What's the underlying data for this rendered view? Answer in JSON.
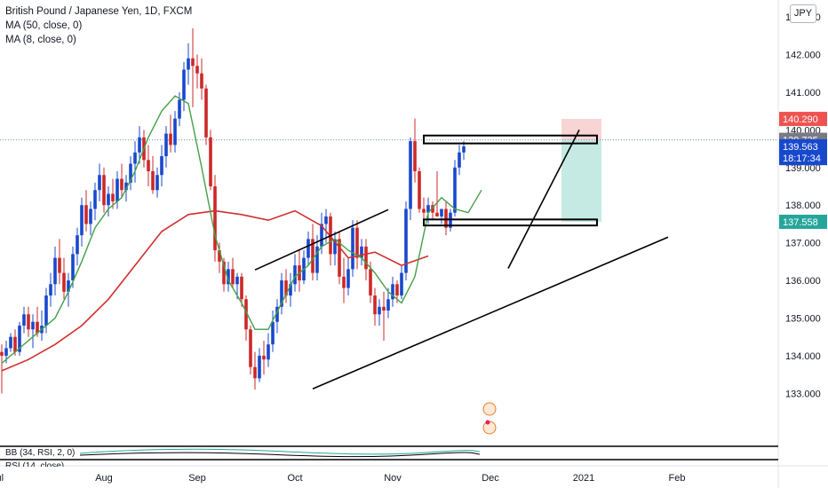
{
  "legend": {
    "title": "British Pound / Japanese Yen, 1D, FXCM",
    "ma50": "MA (50, close, 0)",
    "ma8": "MA (8, close, 0)"
  },
  "currency_button": "JPY",
  "indicators": {
    "bb": "BB (34, RSI, 2, 0)",
    "rsi": "RSI (14, close)"
  },
  "colors": {
    "up": "#1848cc",
    "down": "#cc2828",
    "ma50": "#d32f2f",
    "ma8": "#43a047",
    "stop_zone": "#f7c9c9",
    "target_zone": "#b7e4dc",
    "price_line": "#7c8db0"
  },
  "chart_data": {
    "type": "candlestick",
    "symbol": "British Pound / Japanese Yen",
    "interval": "1D",
    "source": "FXCM",
    "ylim": [
      131.9,
      143.45
    ],
    "y_ticks": [
      133.0,
      134.0,
      135.0,
      136.0,
      137.0,
      138.0,
      139.0,
      140.0,
      141.0,
      142.0,
      143.0
    ],
    "y_tick_labels": [
      "133.000",
      "134.000",
      "135.000",
      "136.000",
      "137.000",
      "138.000",
      "139.000",
      "140.000",
      "141.000",
      "142.000",
      "143.000"
    ],
    "x_labels": [
      {
        "label": "Jul",
        "index": -1
      },
      {
        "label": "Aug",
        "index": 23
      },
      {
        "label": "Sep",
        "index": 44
      },
      {
        "label": "Oct",
        "index": 66
      },
      {
        "label": "Nov",
        "index": 88
      },
      {
        "label": "Dec",
        "index": 110
      },
      {
        "label": "2021",
        "index": 131
      },
      {
        "label": "Feb",
        "index": 152
      }
    ],
    "price_labels": [
      {
        "text": "140.290",
        "value": 140.29,
        "color": "#ef5350"
      },
      {
        "text": "139.735",
        "value": 139.735,
        "color": "#787b86"
      },
      {
        "text": "139.563",
        "value": 139.563,
        "color": "#1848cc"
      },
      {
        "text": "18:17:34",
        "value": 139.25,
        "color": "#1848cc"
      },
      {
        "text": "137.558",
        "value": 137.558,
        "color": "#26a69a"
      }
    ],
    "candles": [
      [
        134.1,
        134.3,
        133.0,
        134.0
      ],
      [
        134.0,
        134.4,
        133.8,
        134.2
      ],
      [
        134.2,
        134.6,
        134.1,
        134.5
      ],
      [
        134.5,
        134.7,
        134.0,
        134.1
      ],
      [
        134.1,
        134.9,
        134.0,
        134.8
      ],
      [
        134.8,
        135.3,
        134.6,
        135.1
      ],
      [
        135.1,
        135.3,
        134.5,
        134.7
      ],
      [
        134.7,
        135.1,
        134.2,
        134.9
      ],
      [
        134.9,
        135.3,
        134.5,
        134.6
      ],
      [
        134.6,
        135.2,
        134.4,
        134.8
      ],
      [
        134.8,
        135.8,
        134.6,
        135.6
      ],
      [
        135.6,
        136.2,
        135.3,
        135.9
      ],
      [
        135.9,
        136.9,
        135.6,
        136.6
      ],
      [
        136.6,
        137.1,
        135.9,
        136.2
      ],
      [
        136.2,
        136.6,
        135.5,
        135.7
      ],
      [
        135.7,
        136.2,
        135.3,
        136.0
      ],
      [
        136.0,
        136.9,
        135.8,
        136.7
      ],
      [
        136.7,
        137.4,
        136.4,
        137.2
      ],
      [
        137.2,
        138.2,
        136.9,
        138.0
      ],
      [
        138.0,
        138.4,
        137.3,
        137.5
      ],
      [
        137.5,
        138.1,
        137.2,
        137.9
      ],
      [
        137.9,
        138.6,
        137.6,
        138.4
      ],
      [
        138.4,
        139.1,
        138.1,
        138.8
      ],
      [
        138.8,
        139.0,
        137.8,
        138.0
      ],
      [
        138.0,
        138.5,
        137.7,
        138.3
      ],
      [
        138.3,
        138.7,
        137.9,
        138.1
      ],
      [
        138.1,
        138.9,
        137.9,
        138.7
      ],
      [
        138.7,
        139.1,
        138.2,
        138.4
      ],
      [
        138.4,
        138.8,
        138.1,
        138.6
      ],
      [
        138.6,
        139.3,
        138.4,
        139.1
      ],
      [
        139.1,
        139.7,
        138.6,
        139.4
      ],
      [
        139.4,
        140.1,
        139.1,
        139.8
      ],
      [
        139.8,
        140.0,
        139.0,
        139.2
      ],
      [
        139.2,
        139.6,
        138.5,
        138.9
      ],
      [
        138.9,
        139.3,
        138.3,
        138.4
      ],
      [
        138.4,
        139.0,
        138.2,
        138.8
      ],
      [
        138.8,
        139.6,
        138.5,
        139.3
      ],
      [
        139.3,
        140.1,
        139.0,
        139.9
      ],
      [
        139.9,
        140.4,
        139.4,
        139.6
      ],
      [
        139.6,
        140.5,
        139.4,
        140.3
      ],
      [
        140.3,
        141.0,
        140.1,
        140.8
      ],
      [
        140.8,
        141.8,
        140.5,
        141.6
      ],
      [
        141.6,
        142.3,
        141.2,
        141.9
      ],
      [
        141.9,
        142.7,
        140.6,
        141.7
      ],
      [
        141.7,
        142.0,
        141.1,
        141.5
      ],
      [
        141.5,
        141.9,
        140.8,
        141.1
      ],
      [
        141.1,
        141.2,
        139.6,
        139.8
      ],
      [
        139.8,
        140.0,
        138.4,
        138.5
      ],
      [
        138.5,
        138.8,
        136.5,
        136.8
      ],
      [
        136.8,
        137.0,
        136.2,
        136.5
      ],
      [
        136.5,
        136.6,
        135.7,
        135.9
      ],
      [
        135.9,
        136.5,
        135.7,
        136.3
      ],
      [
        136.3,
        136.6,
        135.8,
        135.9
      ],
      [
        135.9,
        136.2,
        135.5,
        136.1
      ],
      [
        136.1,
        136.2,
        135.3,
        135.5
      ],
      [
        135.5,
        135.6,
        134.4,
        134.7
      ],
      [
        134.7,
        134.8,
        133.5,
        133.7
      ],
      [
        133.7,
        134.1,
        133.1,
        133.4
      ],
      [
        133.4,
        134.2,
        133.3,
        134.0
      ],
      [
        134.0,
        134.4,
        133.5,
        133.9
      ],
      [
        133.9,
        134.6,
        133.7,
        134.3
      ],
      [
        134.3,
        135.2,
        134.1,
        134.9
      ],
      [
        134.9,
        135.5,
        134.6,
        135.3
      ],
      [
        135.3,
        136.2,
        135.1,
        136.0
      ],
      [
        136.0,
        136.3,
        135.4,
        135.6
      ],
      [
        135.6,
        136.2,
        135.3,
        135.9
      ],
      [
        135.9,
        136.7,
        135.7,
        136.4
      ],
      [
        136.4,
        136.8,
        135.7,
        136.0
      ],
      [
        136.0,
        136.8,
        135.9,
        136.6
      ],
      [
        136.6,
        137.3,
        136.4,
        137.1
      ],
      [
        137.1,
        137.5,
        136.0,
        136.2
      ],
      [
        136.2,
        137.2,
        136.0,
        136.9
      ],
      [
        136.9,
        137.8,
        136.7,
        137.5
      ],
      [
        137.5,
        137.9,
        137.0,
        137.7
      ],
      [
        137.7,
        137.8,
        136.4,
        136.7
      ],
      [
        136.7,
        137.3,
        136.4,
        137.1
      ],
      [
        137.1,
        137.3,
        135.9,
        136.1
      ],
      [
        136.1,
        136.6,
        135.4,
        135.8
      ],
      [
        135.8,
        136.6,
        135.6,
        136.3
      ],
      [
        136.3,
        137.6,
        136.1,
        137.4
      ],
      [
        137.4,
        137.6,
        136.3,
        136.6
      ],
      [
        136.6,
        137.1,
        136.4,
        136.9
      ],
      [
        136.9,
        137.1,
        136.0,
        136.3
      ],
      [
        136.3,
        136.5,
        135.4,
        135.6
      ],
      [
        135.6,
        135.8,
        134.8,
        135.1
      ],
      [
        135.1,
        135.5,
        134.8,
        135.3
      ],
      [
        135.3,
        135.7,
        134.4,
        135.2
      ],
      [
        135.2,
        135.8,
        135.0,
        135.5
      ],
      [
        135.5,
        136.1,
        135.3,
        135.9
      ],
      [
        135.9,
        136.0,
        135.4,
        135.6
      ],
      [
        135.6,
        136.4,
        135.5,
        136.2
      ],
      [
        136.2,
        138.1,
        136.0,
        137.9
      ],
      [
        137.9,
        139.8,
        137.6,
        139.7
      ],
      [
        139.7,
        140.3,
        138.6,
        138.9
      ],
      [
        138.9,
        139.0,
        137.8,
        137.9
      ],
      [
        137.9,
        138.2,
        137.6,
        137.8
      ],
      [
        137.8,
        138.2,
        137.5,
        138.0
      ],
      [
        138.0,
        138.1,
        137.6,
        137.8
      ],
      [
        137.8,
        138.9,
        137.7,
        137.7
      ],
      [
        137.7,
        137.9,
        137.5,
        137.9
      ],
      [
        137.9,
        138.1,
        137.2,
        137.4
      ],
      [
        137.4,
        137.9,
        137.3,
        137.8
      ],
      [
        137.8,
        139.2,
        137.7,
        139.0
      ],
      [
        139.0,
        139.6,
        138.8,
        139.4
      ],
      [
        139.4,
        139.7,
        139.2,
        139.56
      ]
    ],
    "ma50": {
      "name": "MA (50, close, 0)",
      "start_index": 0,
      "step": 6,
      "values": [
        133.6,
        133.9,
        134.3,
        134.8,
        135.5,
        136.4,
        137.3,
        137.75,
        137.85,
        137.75,
        137.6,
        137.85,
        137.45,
        136.6,
        136.75,
        136.4,
        136.65
      ]
    },
    "ma8": {
      "name": "MA (8, close, 0)",
      "start_index": 0,
      "step": 3,
      "values": [
        133.8,
        134.1,
        134.4,
        134.7,
        135.0,
        135.7,
        136.5,
        137.4,
        137.9,
        138.2,
        138.9,
        139.8,
        140.5,
        140.9,
        140.7,
        139.0,
        137.2,
        136.0,
        135.4,
        134.7,
        134.7,
        135.4,
        136.1,
        136.4,
        136.9,
        137.1,
        136.8,
        136.6,
        136.2,
        135.7,
        135.4,
        136.1,
        137.8,
        138.2,
        137.9,
        137.8,
        138.4
      ]
    },
    "channel_lines": [
      {
        "from": [
          57,
          136.28
        ],
        "to": [
          87,
          137.88
        ]
      },
      {
        "from": [
          70,
          133.12
        ],
        "to": [
          150,
          137.15
        ]
      },
      {
        "from": [
          114,
          136.32
        ],
        "to": [
          130,
          140.0
        ]
      }
    ],
    "zones": [
      {
        "label": "140.290",
        "from_index": 126,
        "to_index": 135,
        "low": 139.735,
        "high": 140.29
      },
      {
        "label": "137.558",
        "from_index": 126,
        "to_index": 135,
        "low": 137.558,
        "high": 139.735
      }
    ],
    "rectangles": [
      {
        "from_index": 95,
        "to_index": 134,
        "low": 139.64,
        "high": 139.85
      },
      {
        "from_index": 95,
        "to_index": 134,
        "low": 137.46,
        "high": 137.62
      }
    ]
  }
}
